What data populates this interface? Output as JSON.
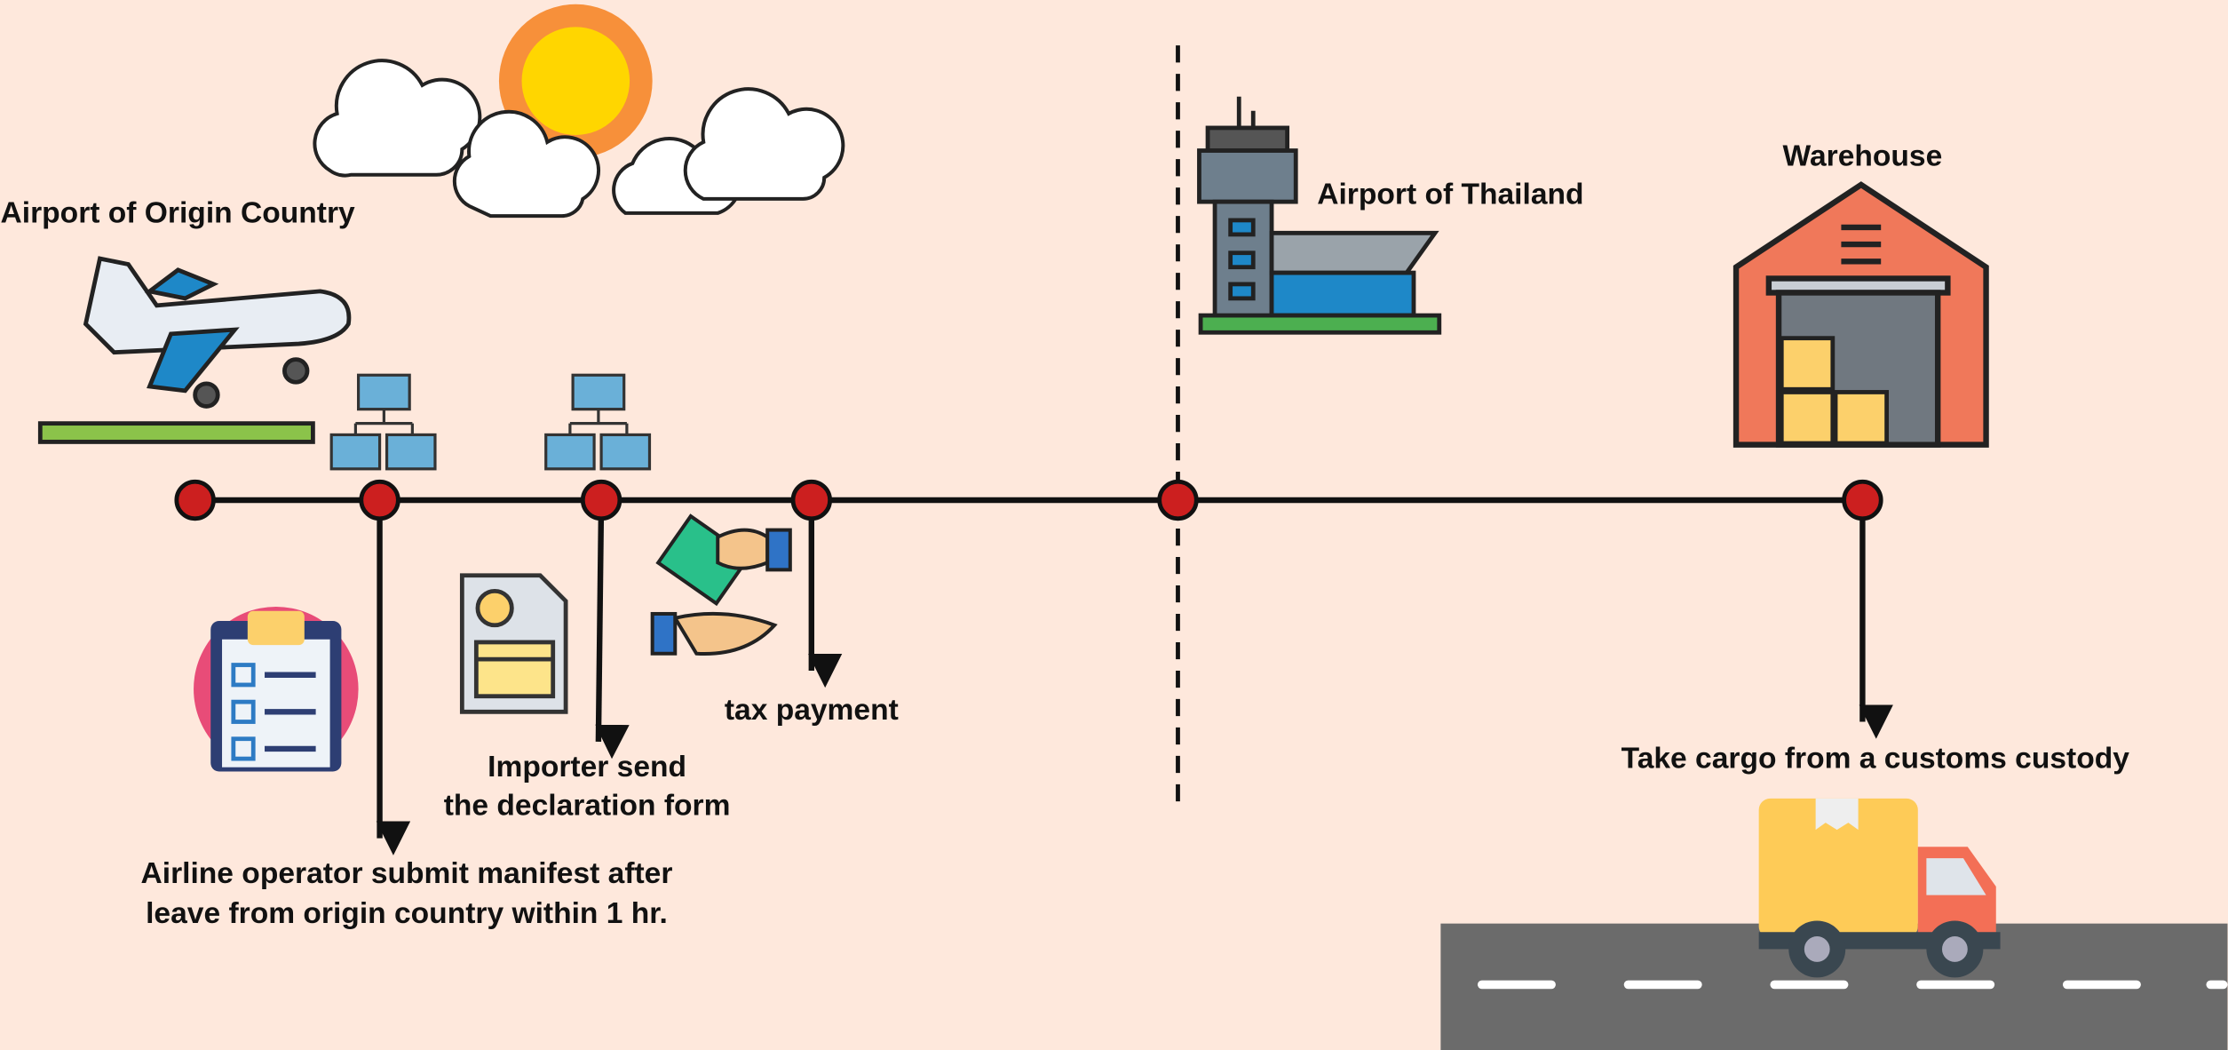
{
  "locations": [
    {
      "label": "Airport of Origin Country"
    },
    {
      "label": "Airport of Thailand"
    },
    {
      "label": "Warehouse"
    }
  ],
  "steps": [
    {
      "lines": [
        "Airline operator submit manifest after",
        "leave from origin country within 1 hr."
      ]
    },
    {
      "lines": [
        "Importer send",
        "the declaration form"
      ]
    },
    {
      "lines": [
        "tax payment"
      ]
    },
    {
      "lines": [
        "Take cargo from a customs custody"
      ]
    }
  ]
}
